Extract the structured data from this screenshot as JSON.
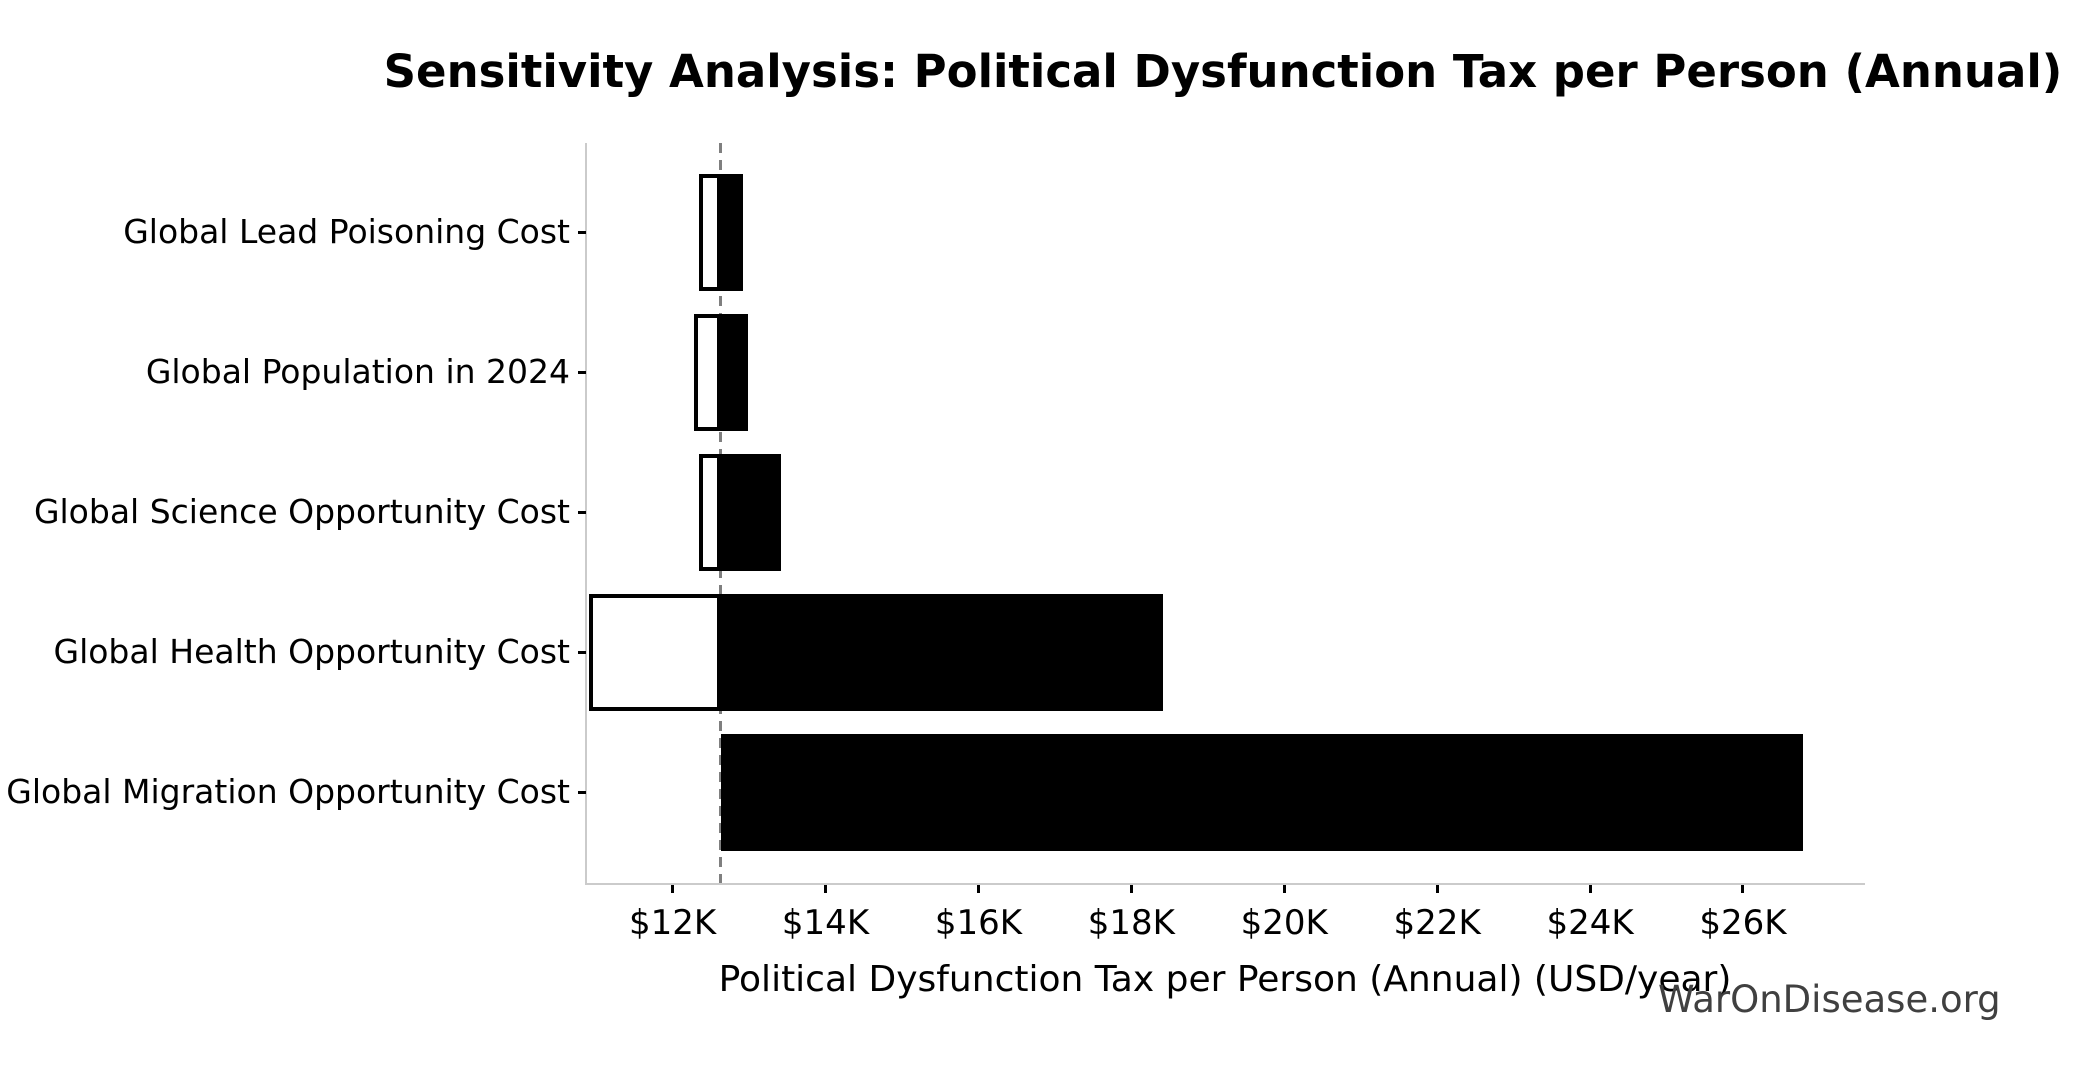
{
  "page": {
    "background": "#ffffff"
  },
  "watermark": {
    "text": "WarOnDisease.org",
    "color": "#404040"
  },
  "chart_data": {
    "type": "bar",
    "orientation": "horizontal",
    "variant": "tornado-sensitivity",
    "title": "Sensitivity Analysis: Political Dysfunction Tax per Person (Annual)",
    "xlabel": "Political Dysfunction Tax per Person (Annual) (USD/year)",
    "categories": [
      "Global Lead Poisoning Cost",
      "Global Population in 2024",
      "Global Science Opportunity Cost",
      "Global Health Opportunity Cost",
      "Global Migration Opportunity Cost"
    ],
    "baseline": 12630,
    "series": [
      {
        "name": "low",
        "values": [
          12350,
          12280,
          12350,
          10900,
          12630
        ]
      },
      {
        "name": "high",
        "values": [
          12920,
          12980,
          13420,
          18410,
          26790
        ]
      }
    ],
    "xlim": [
      10880,
      27570
    ],
    "xticks": {
      "values": [
        12000,
        14000,
        16000,
        18000,
        20000,
        22000,
        24000,
        26000
      ],
      "labels": [
        "$12K",
        "$14K",
        "$16K",
        "$18K",
        "$20K",
        "$22K",
        "$24K",
        "$26K"
      ]
    },
    "grid": false,
    "colors": {
      "high_bar_fill": "#000000",
      "low_bar_fill": "#ffffff",
      "low_bar_edge": "#000000",
      "baseline_line": "#7f7f7f",
      "spine": "#cbcbcb",
      "tick": "#000000",
      "text": "#000000"
    }
  }
}
